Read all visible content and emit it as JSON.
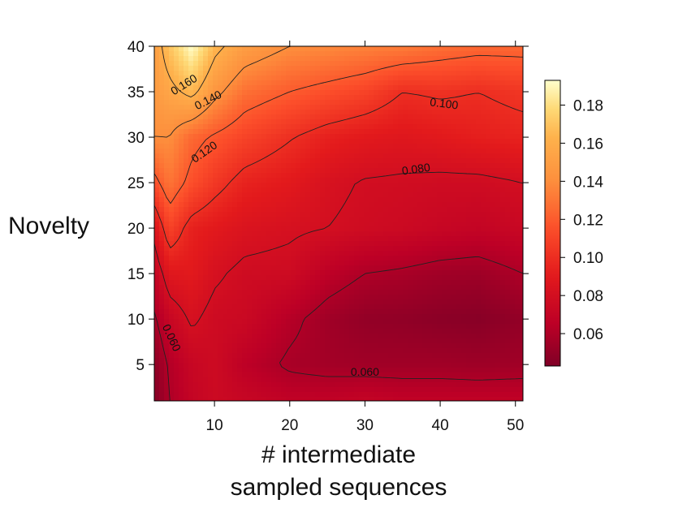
{
  "chart_data": {
    "type": "heatmap",
    "xlabel_lines": [
      "# intermediate",
      "sampled sequences"
    ],
    "ylabel": "Novelty",
    "xlim": [
      2,
      51
    ],
    "ylim": [
      1,
      40
    ],
    "x_ticks": [
      10,
      20,
      30,
      40,
      50
    ],
    "y_ticks": [
      5,
      10,
      15,
      20,
      25,
      30,
      35,
      40
    ],
    "colorbar": {
      "colormap": "YlOrRd",
      "range": [
        0.043,
        0.193
      ],
      "ticks": [
        0.06,
        0.08,
        0.1,
        0.12,
        0.14,
        0.16,
        0.18
      ],
      "tick_labels": [
        "0.06",
        "0.08",
        "0.10",
        "0.12",
        "0.14",
        "0.16",
        "0.18"
      ]
    },
    "grid": false,
    "x_samples": [
      2,
      4,
      7,
      10,
      14,
      20,
      25,
      30,
      35,
      40,
      45,
      51
    ],
    "y_samples": [
      1,
      5,
      10,
      15,
      20,
      25,
      30,
      35,
      40
    ],
    "z": [
      [
        0.045,
        0.06,
        0.07,
        0.075,
        0.072,
        0.068,
        0.068,
        0.07,
        0.068,
        0.068,
        0.068,
        0.068
      ],
      [
        0.048,
        0.062,
        0.072,
        0.076,
        0.066,
        0.058,
        0.056,
        0.055,
        0.055,
        0.055,
        0.054,
        0.055
      ],
      [
        0.058,
        0.072,
        0.082,
        0.076,
        0.074,
        0.063,
        0.055,
        0.05,
        0.049,
        0.047,
        0.046,
        0.05
      ],
      [
        0.07,
        0.088,
        0.09,
        0.082,
        0.077,
        0.076,
        0.066,
        0.06,
        0.058,
        0.055,
        0.054,
        0.06
      ],
      [
        0.085,
        0.11,
        0.094,
        0.09,
        0.085,
        0.082,
        0.08,
        0.077,
        0.075,
        0.072,
        0.07,
        0.073
      ],
      [
        0.115,
        0.13,
        0.115,
        0.105,
        0.095,
        0.09,
        0.083,
        0.079,
        0.078,
        0.077,
        0.077,
        0.08
      ],
      [
        0.14,
        0.14,
        0.125,
        0.118,
        0.11,
        0.101,
        0.094,
        0.09,
        0.088,
        0.09,
        0.093,
        0.095
      ],
      [
        0.148,
        0.155,
        0.165,
        0.145,
        0.128,
        0.12,
        0.115,
        0.11,
        0.1,
        0.102,
        0.1,
        0.104
      ],
      [
        0.15,
        0.17,
        0.193,
        0.165,
        0.15,
        0.14,
        0.138,
        0.135,
        0.133,
        0.128,
        0.125,
        0.125
      ]
    ],
    "contour_levels": [
      0.06,
      0.08,
      0.1,
      0.12,
      0.14,
      0.16
    ],
    "contour_labels": [
      {
        "text": "0.160",
        "x": 6.0,
        "y": 35.7,
        "angle": -32
      },
      {
        "text": "0.140",
        "x": 9.2,
        "y": 34.0,
        "angle": -27
      },
      {
        "text": "0.120",
        "x": 8.7,
        "y": 28.3,
        "angle": -35
      },
      {
        "text": "0.100",
        "x": 40.5,
        "y": 33.6,
        "angle": 7
      },
      {
        "text": "0.080",
        "x": 36.8,
        "y": 26.4,
        "angle": -8
      },
      {
        "text": "0.060",
        "x": 4.2,
        "y": 7.9,
        "angle": 65
      },
      {
        "text": "0.060",
        "x": 30.0,
        "y": 4.1,
        "angle": 0
      }
    ]
  }
}
